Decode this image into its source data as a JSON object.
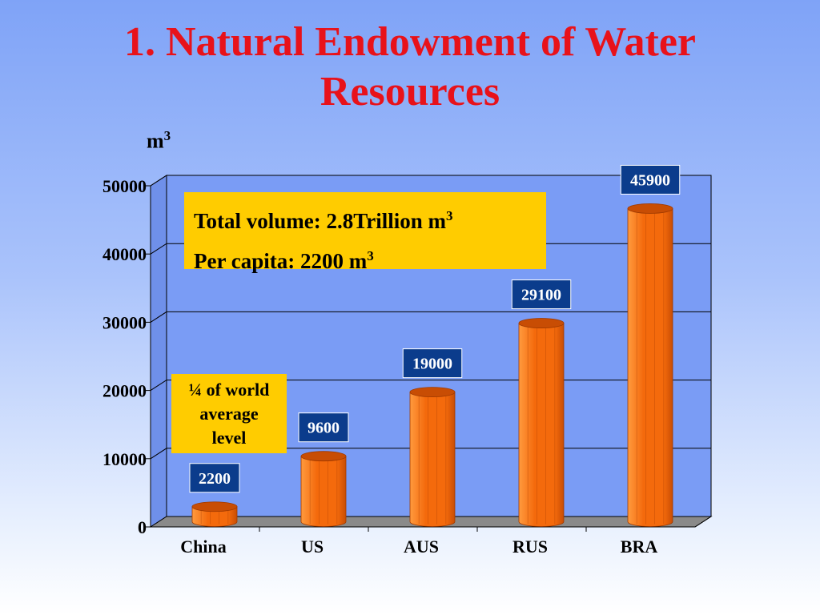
{
  "slide": {
    "title_line1": "1. Natural Endowment of Water",
    "title_line2": "Resources",
    "unit_base": "m",
    "unit_exp": "3"
  },
  "callouts": {
    "total_label": "Total volume: 2.8Trillion m",
    "total_exp": "3",
    "per_capita_label": "Per capita: 2200 m",
    "per_capita_exp": "3",
    "ratio_line1": "¼ of world",
    "ratio_line2": "average",
    "ratio_line3": "level"
  },
  "chart_data": {
    "type": "bar",
    "title": "",
    "xlabel": "",
    "ylabel": "m3",
    "categories": [
      "China",
      "US",
      "AUS",
      "RUS",
      "BRA"
    ],
    "values": [
      2200,
      9600,
      19000,
      29100,
      45900
    ],
    "data_labels": [
      "2200",
      "9600",
      "19000",
      "29100",
      "45900"
    ],
    "ylim": [
      0,
      50000
    ],
    "yticks": [
      0,
      10000,
      20000,
      30000,
      40000,
      50000
    ],
    "ytick_labels": [
      "0",
      "10000",
      "20000",
      "30000",
      "40000",
      "50000"
    ],
    "grid": true,
    "colors": {
      "bar": "#f46a0c",
      "bar_dark": "#c84d04",
      "bar_light": "#ff9a3e",
      "plot_background": "#7a9cf5",
      "data_label_box": "#0b3c8c",
      "callout": "#ffcc00",
      "title": "#e8121a"
    }
  }
}
